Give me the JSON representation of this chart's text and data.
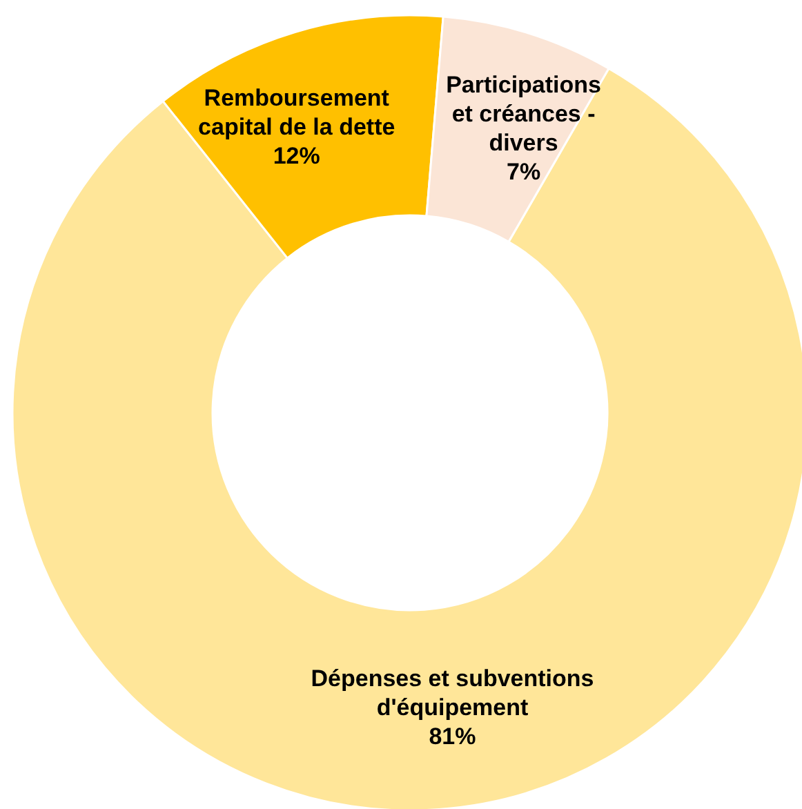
{
  "chart_data": {
    "type": "donut",
    "categories": [
      "Dépenses et subventions d'équipement",
      "Remboursement capital de la dette",
      "Participations et créances - divers"
    ],
    "values": [
      81,
      12,
      7
    ],
    "colors": [
      "#ffe699",
      "#ffc000",
      "#fbe5d6"
    ],
    "value_labels": [
      "81%",
      "12%",
      "7%"
    ]
  }
}
